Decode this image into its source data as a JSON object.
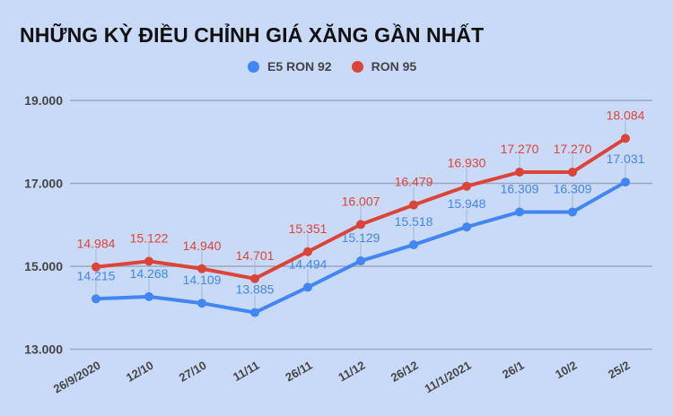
{
  "header": {
    "title": "NHỮNG KỲ ĐIỀU CHỈNH GIÁ XĂNG GẦN NHẤT"
  },
  "colors": {
    "background": "#c9daf8",
    "e5": "#4285f4",
    "ron95": "#db4437",
    "grid": "#9aa6bd",
    "axis_text": "#444444"
  },
  "legend": [
    {
      "label": "E5 RON 92",
      "color": "#4285f4"
    },
    {
      "label": "RON 95",
      "color": "#db4437"
    }
  ],
  "chart_data": {
    "type": "line",
    "title": "NHỮNG KỲ ĐIỀU CHỈNH GIÁ XĂNG GẦN NHẤT",
    "xlabel": "",
    "ylabel": "",
    "categories": [
      "26/9/2020",
      "12/10",
      "27/10",
      "11/11",
      "26/11",
      "11/12",
      "26/12",
      "11/1/2021",
      "26/1",
      "10/2",
      "25/2"
    ],
    "series": [
      {
        "name": "E5 RON 92",
        "color": "#4285f4",
        "values": [
          14215,
          14268,
          14109,
          13885,
          14494,
          15129,
          15518,
          15948,
          16309,
          16309,
          17031
        ],
        "labels": [
          "14.215",
          "14.268",
          "14.109",
          "13.885",
          "14.494",
          "15.129",
          "15.518",
          "15.948",
          "16.309",
          "16.309",
          "17.031"
        ]
      },
      {
        "name": "RON 95",
        "color": "#db4437",
        "values": [
          14984,
          15122,
          14940,
          14701,
          15351,
          16007,
          16479,
          16930,
          17270,
          17270,
          18084
        ],
        "labels": [
          "14.984",
          "15.122",
          "14.940",
          "14.701",
          "15.351",
          "16.007",
          "16.479",
          "16.930",
          "17.270",
          "17.270",
          "18.084"
        ]
      }
    ],
    "yticks": [
      13000,
      15000,
      17000,
      19000
    ],
    "ytick_labels": [
      "13.000",
      "15.000",
      "17.000",
      "19.000"
    ],
    "ylim": [
      13000,
      19000
    ],
    "grid": true,
    "legend_position": "top"
  }
}
